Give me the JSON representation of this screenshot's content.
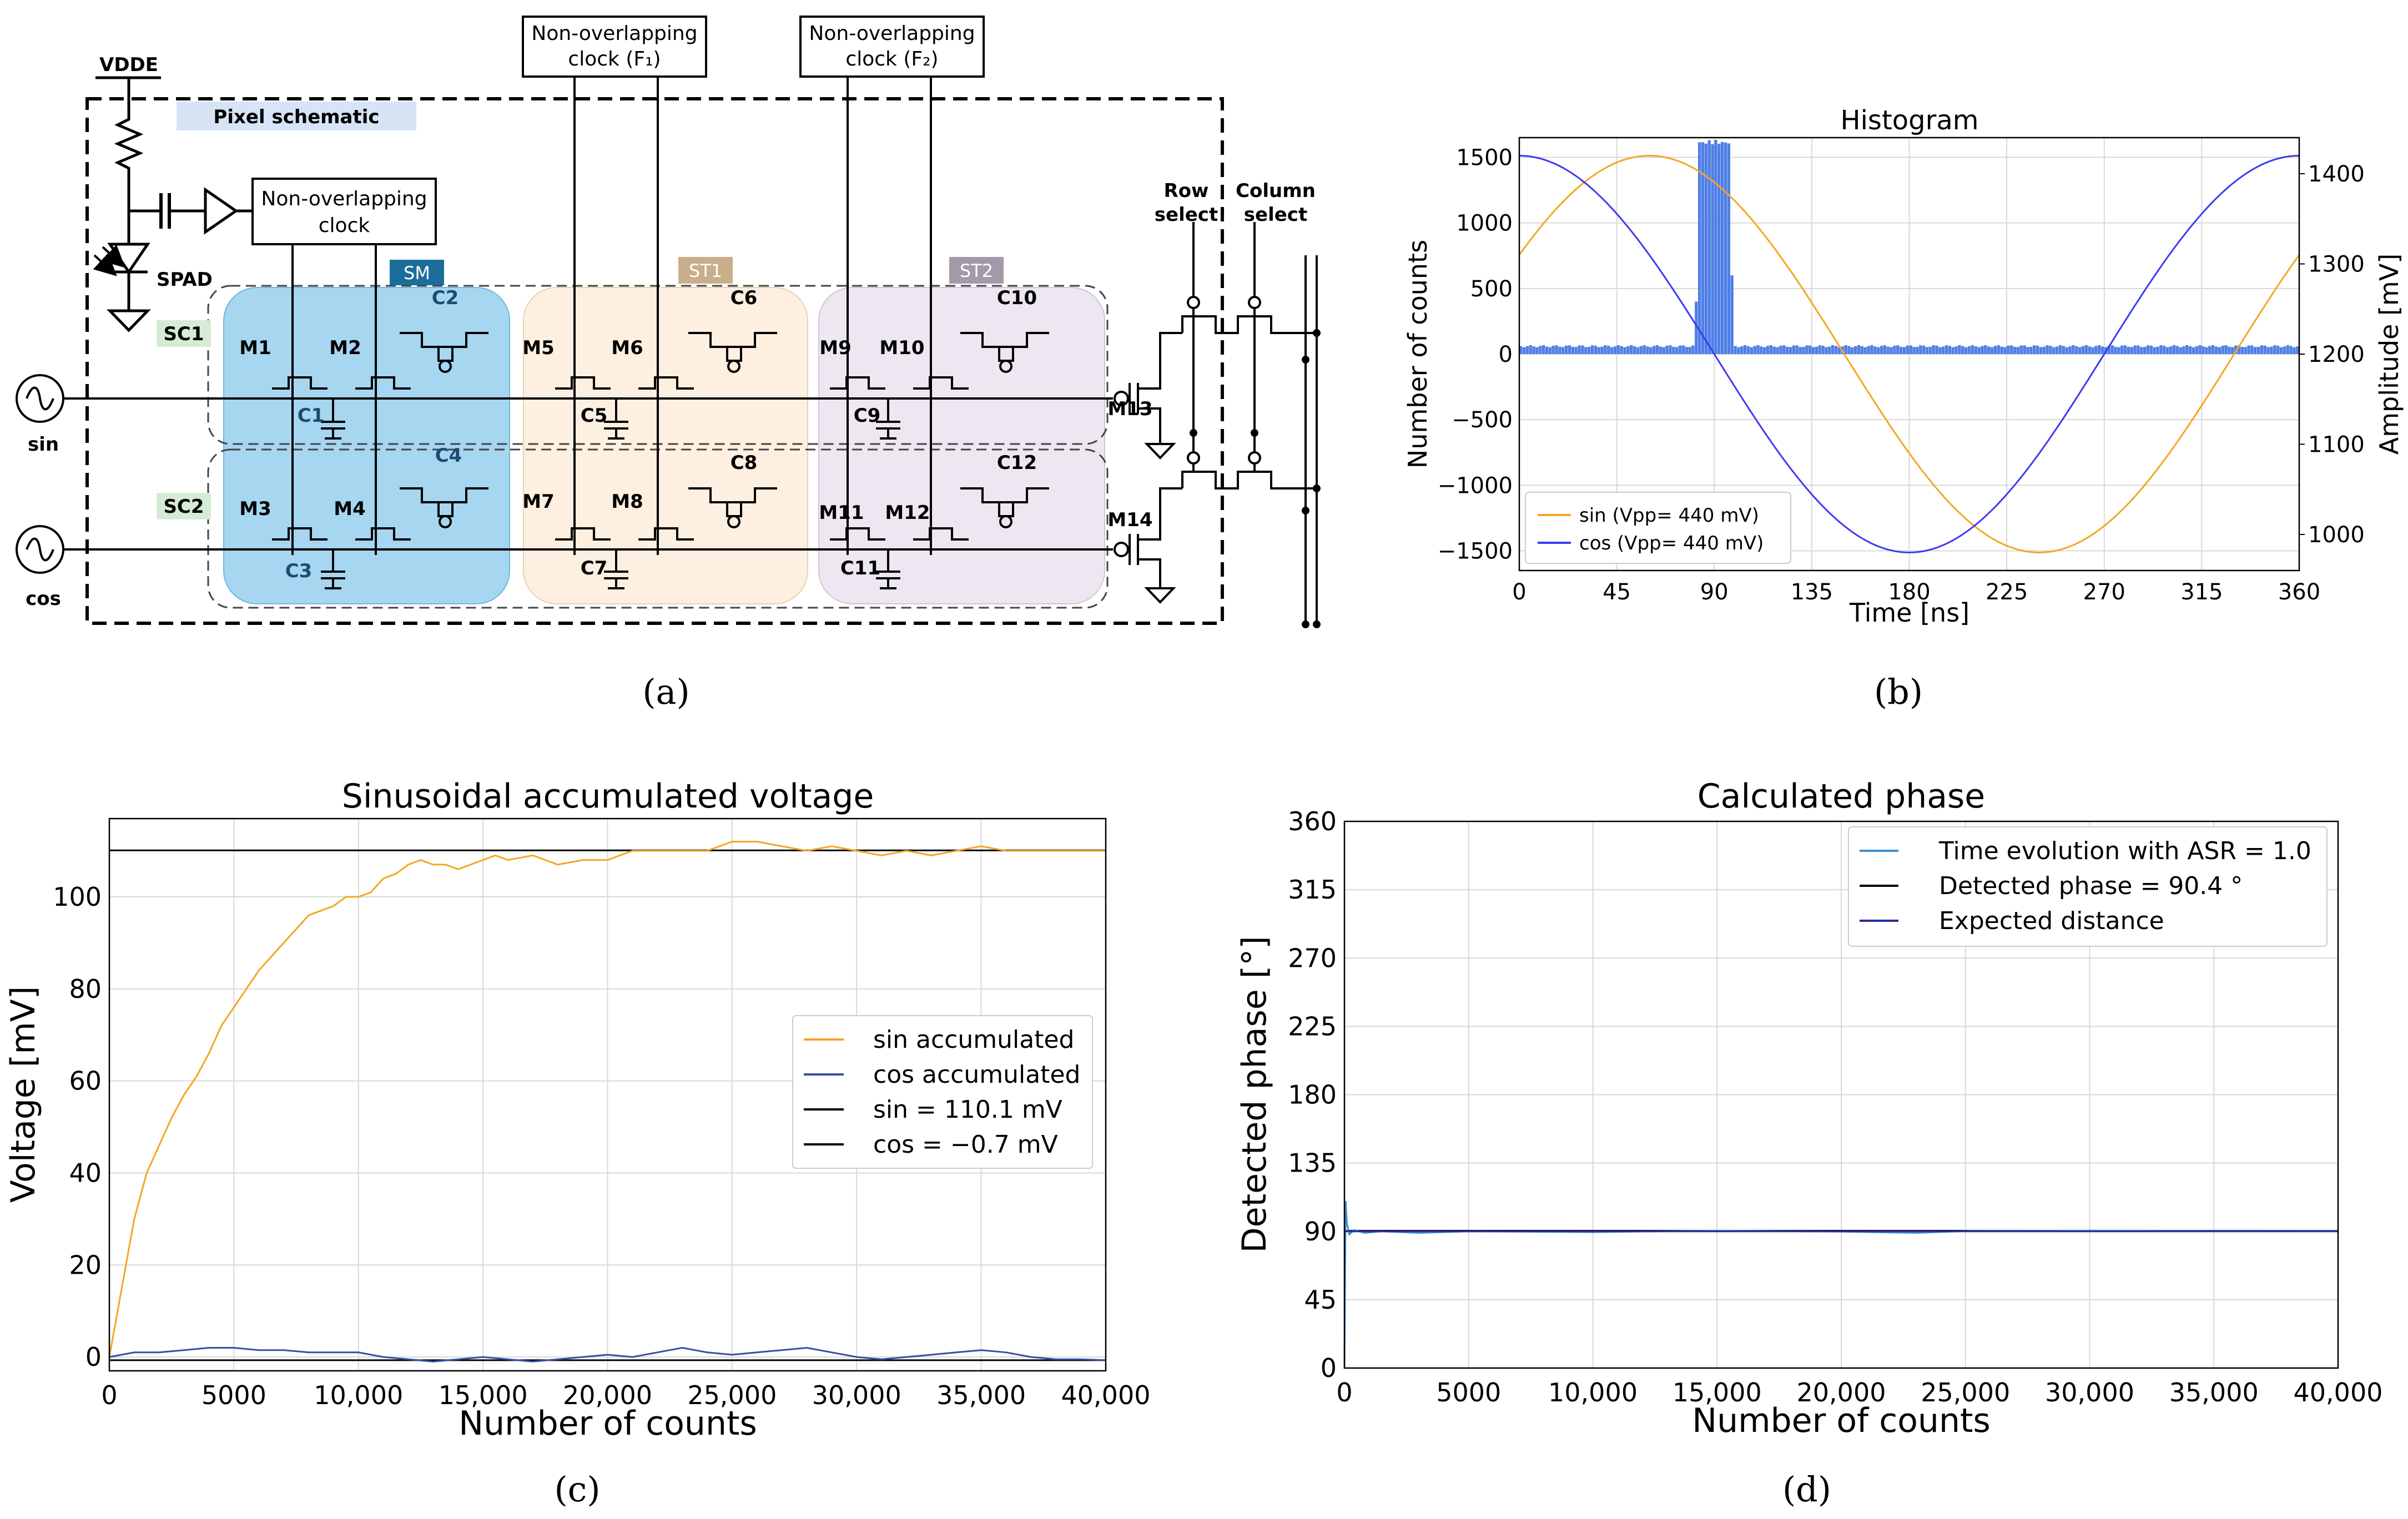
{
  "panel_labels": {
    "a": "(a)",
    "b": "(b)",
    "c": "(c)",
    "d": "(d)"
  },
  "schematic": {
    "vdd": "VDDE",
    "pixel_title": "Pixel schematic",
    "noc_local": [
      "Non-overlapping",
      "clock"
    ],
    "noc_f1": [
      "Non-overlapping",
      "clock (F₁)"
    ],
    "noc_f2": [
      "Non-overlapping",
      "clock (F₂)"
    ],
    "spad": "SPAD",
    "sm": "SM",
    "st1": "ST1",
    "st2": "ST2",
    "sc1": "SC1",
    "sc2": "SC2",
    "sin": "sin",
    "cos": "cos",
    "row_select": [
      "Row",
      "select"
    ],
    "column_select": [
      "Column",
      "select"
    ],
    "transistors": [
      "M1",
      "M2",
      "M3",
      "M4",
      "M5",
      "M6",
      "M7",
      "M8",
      "M9",
      "M10",
      "M11",
      "M12",
      "M13",
      "M14"
    ],
    "capacitors": [
      "C1",
      "C2",
      "C3",
      "C4",
      "C5",
      "C6",
      "C7",
      "C8",
      "C9",
      "C10",
      "C11",
      "C12"
    ],
    "colors": {
      "sm": "#a6d6f0",
      "st1": "#fdf0e0",
      "st2": "#ece7f0",
      "sm_tag": "#1b6e9a",
      "st1_tag": "#c9ae8c",
      "st2_tag": "#a29aa8",
      "sc_tag": "#d6ebd6",
      "title_tag": "#d7e4f5"
    }
  },
  "chart_b": {
    "type": "line+histogram",
    "title": "Histogram",
    "xlabel": "Time [ns]",
    "ylabel_left": "Number of counts",
    "ylabel_right": "Amplitude [mV]",
    "xlim": [
      0,
      360
    ],
    "ylim_left": [
      -1650,
      1650
    ],
    "ylim_right": [
      960,
      1440
    ],
    "x_ticks": [
      "0",
      "45",
      "90",
      "135",
      "180",
      "225",
      "270",
      "315",
      "360"
    ],
    "y_ticks_left": [
      "1500",
      "1000",
      "500",
      "0",
      "−500",
      "−1000",
      "−1500"
    ],
    "y_ticks_right": [
      "1400",
      "1300",
      "1200",
      "1100",
      "1000"
    ],
    "legend": [
      "sin (Vpp= 440 mV)",
      "cos (Vpp= 440 mV)"
    ],
    "sin_vpp_mV": 440,
    "cos_vpp_mV": 440,
    "offset_mV": 1200,
    "hist_baseline": 60,
    "hist_peak": 1640,
    "peak_range_ns": [
      80,
      98
    ],
    "colors": {
      "sin": "#f5a623",
      "cos": "#3b3bf0",
      "hist": "#4f7fe6"
    }
  },
  "chart_c": {
    "type": "line",
    "title": "Sinusoidal accumulated voltage",
    "xlabel": "Number of counts",
    "ylabel": "Voltage [mV]",
    "xlim": [
      0,
      40000
    ],
    "ylim": [
      -3,
      117
    ],
    "x_ticks": [
      "0",
      "5000",
      "10,000",
      "15,000",
      "20,000",
      "25,000",
      "30,000",
      "35,000",
      "40,000"
    ],
    "y_ticks": [
      "0",
      "20",
      "40",
      "60",
      "80",
      "100"
    ],
    "legend": [
      "sin accumulated",
      "cos accumulated",
      "sin = 110.1 mV",
      "cos = −0.7 mV"
    ],
    "sin_final_mV": 110.1,
    "cos_final_mV": -0.7,
    "sin_points": [
      [
        0,
        0
      ],
      [
        500,
        15
      ],
      [
        1000,
        30
      ],
      [
        1500,
        40
      ],
      [
        2000,
        46
      ],
      [
        2500,
        52
      ],
      [
        3000,
        57
      ],
      [
        3500,
        61
      ],
      [
        4000,
        66
      ],
      [
        4500,
        72
      ],
      [
        5000,
        76
      ],
      [
        5500,
        80
      ],
      [
        6000,
        84
      ],
      [
        6500,
        87
      ],
      [
        7000,
        90
      ],
      [
        7500,
        93
      ],
      [
        8000,
        96
      ],
      [
        8500,
        97
      ],
      [
        9000,
        98
      ],
      [
        9500,
        100
      ],
      [
        10000,
        100
      ],
      [
        10500,
        101
      ],
      [
        11000,
        104
      ],
      [
        11500,
        105
      ],
      [
        12000,
        107
      ],
      [
        12500,
        108
      ],
      [
        13000,
        107
      ],
      [
        13500,
        107
      ],
      [
        14000,
        106
      ],
      [
        15000,
        108
      ],
      [
        15500,
        109
      ],
      [
        16000,
        108
      ],
      [
        17000,
        109
      ],
      [
        18000,
        107
      ],
      [
        19000,
        108
      ],
      [
        20000,
        108
      ],
      [
        21000,
        110
      ],
      [
        22000,
        110
      ],
      [
        23000,
        110
      ],
      [
        24000,
        110
      ],
      [
        25000,
        112
      ],
      [
        26000,
        112
      ],
      [
        27000,
        111
      ],
      [
        28000,
        110
      ],
      [
        29000,
        111
      ],
      [
        30000,
        110
      ],
      [
        31000,
        109
      ],
      [
        32000,
        110
      ],
      [
        33000,
        109
      ],
      [
        34000,
        110
      ],
      [
        35000,
        111
      ],
      [
        36000,
        110
      ],
      [
        37000,
        110
      ],
      [
        38000,
        110
      ],
      [
        39000,
        110
      ],
      [
        40000,
        110
      ]
    ],
    "cos_points": [
      [
        0,
        0
      ],
      [
        1000,
        1
      ],
      [
        2000,
        1
      ],
      [
        3000,
        1.5
      ],
      [
        4000,
        2
      ],
      [
        5000,
        2
      ],
      [
        6000,
        1.5
      ],
      [
        7000,
        1.5
      ],
      [
        8000,
        1
      ],
      [
        9000,
        1
      ],
      [
        10000,
        1
      ],
      [
        11000,
        0
      ],
      [
        12000,
        -0.5
      ],
      [
        13000,
        -1
      ],
      [
        14000,
        -0.5
      ],
      [
        15000,
        0
      ],
      [
        16000,
        -0.5
      ],
      [
        17000,
        -1
      ],
      [
        18000,
        -0.5
      ],
      [
        19000,
        0
      ],
      [
        20000,
        0.5
      ],
      [
        21000,
        0
      ],
      [
        22000,
        1
      ],
      [
        23000,
        2
      ],
      [
        24000,
        1
      ],
      [
        25000,
        0.5
      ],
      [
        26000,
        1
      ],
      [
        27000,
        1.5
      ],
      [
        28000,
        2
      ],
      [
        29000,
        1
      ],
      [
        30000,
        0
      ],
      [
        31000,
        -0.5
      ],
      [
        32000,
        0
      ],
      [
        33000,
        0.5
      ],
      [
        34000,
        1
      ],
      [
        35000,
        1.5
      ],
      [
        36000,
        1
      ],
      [
        37000,
        0
      ],
      [
        38000,
        -0.5
      ],
      [
        39000,
        -0.5
      ],
      [
        40000,
        -0.7
      ]
    ],
    "colors": {
      "sin": "#f5a623",
      "cos": "#3a4fa0",
      "ref": "#000000"
    }
  },
  "chart_d": {
    "type": "line",
    "title": "Calculated phase",
    "xlabel": "Number of counts",
    "ylabel": "Detected phase [°]",
    "xlim": [
      0,
      40000
    ],
    "ylim": [
      0,
      360
    ],
    "x_ticks": [
      "0",
      "5000",
      "10,000",
      "15,000",
      "20,000",
      "25,000",
      "30,000",
      "35,000",
      "40,000"
    ],
    "y_ticks": [
      "0",
      "45",
      "90",
      "135",
      "180",
      "225",
      "270",
      "315",
      "360"
    ],
    "legend": [
      "Time evolution with ASR = 1.0",
      "Detected phase = 90.4 °",
      "Expected distance"
    ],
    "detected_phase_deg": 90.4,
    "expected_deg": 90,
    "evolution_points": [
      [
        0,
        0
      ],
      [
        50,
        110
      ],
      [
        100,
        95
      ],
      [
        200,
        88
      ],
      [
        400,
        91
      ],
      [
        800,
        89
      ],
      [
        1500,
        90
      ],
      [
        3000,
        89
      ],
      [
        5000,
        90
      ],
      [
        10000,
        89.5
      ],
      [
        15000,
        90.5
      ],
      [
        20000,
        89.8
      ],
      [
        23000,
        89
      ],
      [
        25000,
        90.2
      ],
      [
        30000,
        90.5
      ],
      [
        35000,
        90.3
      ],
      [
        40000,
        90.4
      ]
    ],
    "colors": {
      "evolution": "#3a8fd0",
      "detected": "#000000",
      "expected": "#2a2aa0"
    }
  }
}
